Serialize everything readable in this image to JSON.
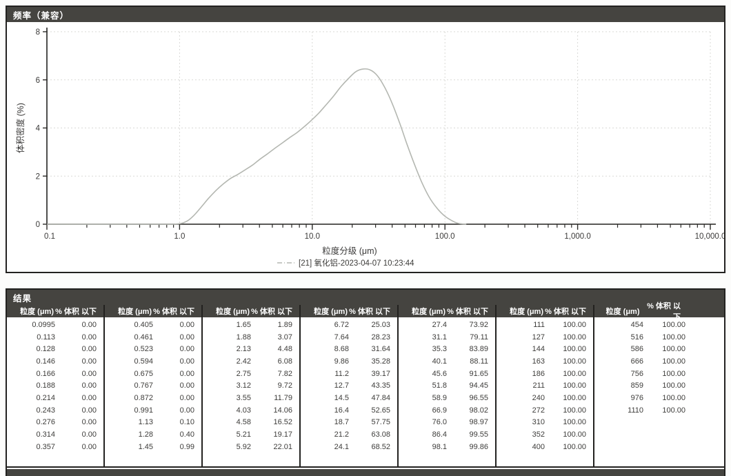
{
  "frequency_panel": {
    "title": "频率（兼容）"
  },
  "chart_data": {
    "type": "line",
    "title": "频率（兼容）",
    "xlabel": "粒度分级 (μm)",
    "ylabel": "体积密度 (%)",
    "x_scale": "log",
    "xlim": [
      0.1,
      10000
    ],
    "ylim": [
      0,
      8
    ],
    "grid": true,
    "yticks": [
      {
        "v": 0,
        "label": "0"
      },
      {
        "v": 2,
        "label": "2"
      },
      {
        "v": 4,
        "label": "4"
      },
      {
        "v": 6,
        "label": "6"
      },
      {
        "v": 8,
        "label": "8"
      }
    ],
    "xticks": [
      {
        "v": 0.1,
        "label": "0.1"
      },
      {
        "v": 1,
        "label": "1.0"
      },
      {
        "v": 10,
        "label": "10.0"
      },
      {
        "v": 100,
        "label": "100.0"
      },
      {
        "v": 1000,
        "label": "1,000.0"
      },
      {
        "v": 10000,
        "label": "10,000.0"
      }
    ],
    "legend": {
      "position": "bottom",
      "entries": [
        {
          "label": "[21] 氧化铝-2023-04-07 10:23:44",
          "color": "#b4b7b1"
        }
      ]
    },
    "series": [
      {
        "name": "[21] 氧化铝-2023-04-07 10:23:44",
        "color": "#b4b7b1",
        "points": [
          [
            0.1,
            0
          ],
          [
            0.6,
            0
          ],
          [
            0.95,
            0.01
          ],
          [
            1.13,
            0.12
          ],
          [
            1.28,
            0.36
          ],
          [
            1.45,
            0.7
          ],
          [
            1.65,
            1.07
          ],
          [
            1.88,
            1.4
          ],
          [
            2.13,
            1.67
          ],
          [
            2.42,
            1.9
          ],
          [
            2.75,
            2.07
          ],
          [
            3.12,
            2.26
          ],
          [
            3.55,
            2.46
          ],
          [
            4.03,
            2.7
          ],
          [
            4.58,
            2.92
          ],
          [
            5.21,
            3.15
          ],
          [
            5.92,
            3.37
          ],
          [
            6.72,
            3.59
          ],
          [
            7.64,
            3.8
          ],
          [
            8.68,
            4.05
          ],
          [
            9.86,
            4.32
          ],
          [
            11.2,
            4.62
          ],
          [
            12.7,
            4.96
          ],
          [
            14.5,
            5.33
          ],
          [
            16.4,
            5.71
          ],
          [
            18.7,
            6.05
          ],
          [
            21.2,
            6.33
          ],
          [
            24.1,
            6.45
          ],
          [
            27.4,
            6.41
          ],
          [
            31.1,
            6.16
          ],
          [
            35.3,
            5.67
          ],
          [
            40.1,
            5.01
          ],
          [
            45.6,
            4.2
          ],
          [
            51.8,
            3.32
          ],
          [
            58.9,
            2.49
          ],
          [
            66.9,
            1.74
          ],
          [
            76.0,
            1.13
          ],
          [
            86.4,
            0.69
          ],
          [
            98.1,
            0.37
          ],
          [
            111,
            0.17
          ],
          [
            125,
            0.04
          ],
          [
            145,
            0
          ]
        ]
      }
    ]
  },
  "results_panel": {
    "title": "结果",
    "col_size_label": "粒度 (μm)",
    "col_pct_label": "% 体积 以下",
    "groups": [
      {
        "rows": [
          [
            "0.0995",
            "0.00"
          ],
          [
            "0.113",
            "0.00"
          ],
          [
            "0.128",
            "0.00"
          ],
          [
            "0.146",
            "0.00"
          ],
          [
            "0.166",
            "0.00"
          ],
          [
            "0.188",
            "0.00"
          ],
          [
            "0.214",
            "0.00"
          ],
          [
            "0.243",
            "0.00"
          ],
          [
            "0.276",
            "0.00"
          ],
          [
            "0.314",
            "0.00"
          ],
          [
            "0.357",
            "0.00"
          ]
        ]
      },
      {
        "rows": [
          [
            "0.405",
            "0.00"
          ],
          [
            "0.461",
            "0.00"
          ],
          [
            "0.523",
            "0.00"
          ],
          [
            "0.594",
            "0.00"
          ],
          [
            "0.675",
            "0.00"
          ],
          [
            "0.767",
            "0.00"
          ],
          [
            "0.872",
            "0.00"
          ],
          [
            "0.991",
            "0.00"
          ],
          [
            "1.13",
            "0.10"
          ],
          [
            "1.28",
            "0.40"
          ],
          [
            "1.45",
            "0.99"
          ]
        ]
      },
      {
        "rows": [
          [
            "1.65",
            "1.89"
          ],
          [
            "1.88",
            "3.07"
          ],
          [
            "2.13",
            "4.48"
          ],
          [
            "2.42",
            "6.08"
          ],
          [
            "2.75",
            "7.82"
          ],
          [
            "3.12",
            "9.72"
          ],
          [
            "3.55",
            "11.79"
          ],
          [
            "4.03",
            "14.06"
          ],
          [
            "4.58",
            "16.52"
          ],
          [
            "5.21",
            "19.17"
          ],
          [
            "5.92",
            "22.01"
          ]
        ]
      },
      {
        "rows": [
          [
            "6.72",
            "25.03"
          ],
          [
            "7.64",
            "28.23"
          ],
          [
            "8.68",
            "31.64"
          ],
          [
            "9.86",
            "35.28"
          ],
          [
            "11.2",
            "39.17"
          ],
          [
            "12.7",
            "43.35"
          ],
          [
            "14.5",
            "47.84"
          ],
          [
            "16.4",
            "52.65"
          ],
          [
            "18.7",
            "57.75"
          ],
          [
            "21.2",
            "63.08"
          ],
          [
            "24.1",
            "68.52"
          ]
        ]
      },
      {
        "rows": [
          [
            "27.4",
            "73.92"
          ],
          [
            "31.1",
            "79.11"
          ],
          [
            "35.3",
            "83.89"
          ],
          [
            "40.1",
            "88.11"
          ],
          [
            "45.6",
            "91.65"
          ],
          [
            "51.8",
            "94.45"
          ],
          [
            "58.9",
            "96.55"
          ],
          [
            "66.9",
            "98.02"
          ],
          [
            "76.0",
            "98.97"
          ],
          [
            "86.4",
            "99.55"
          ],
          [
            "98.1",
            "99.86"
          ]
        ]
      },
      {
        "rows": [
          [
            "111",
            "100.00"
          ],
          [
            "127",
            "100.00"
          ],
          [
            "144",
            "100.00"
          ],
          [
            "163",
            "100.00"
          ],
          [
            "186",
            "100.00"
          ],
          [
            "211",
            "100.00"
          ],
          [
            "240",
            "100.00"
          ],
          [
            "272",
            "100.00"
          ],
          [
            "310",
            "100.00"
          ],
          [
            "352",
            "100.00"
          ],
          [
            "400",
            "100.00"
          ]
        ]
      },
      {
        "rows": [
          [
            "454",
            "100.00"
          ],
          [
            "516",
            "100.00"
          ],
          [
            "586",
            "100.00"
          ],
          [
            "666",
            "100.00"
          ],
          [
            "756",
            "100.00"
          ],
          [
            "859",
            "100.00"
          ],
          [
            "976",
            "100.00"
          ],
          [
            "1110",
            "100.00"
          ]
        ]
      }
    ]
  }
}
